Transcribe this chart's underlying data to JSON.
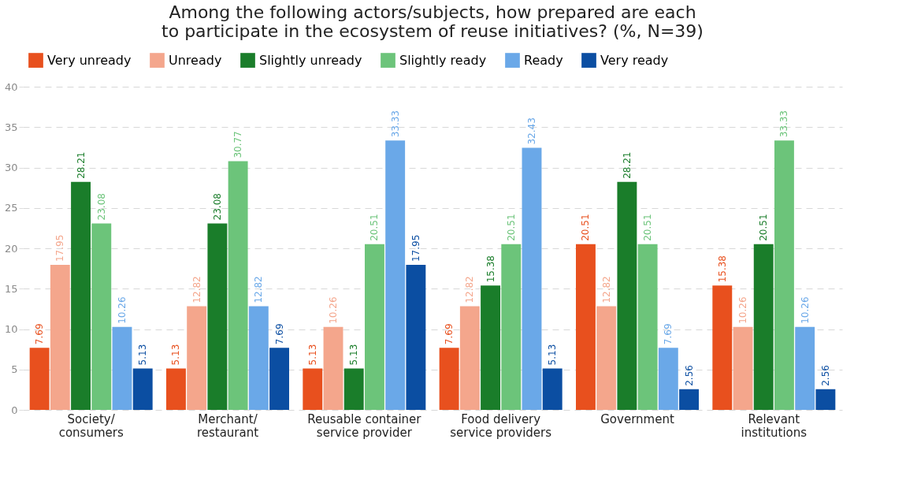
{
  "chart_data": {
    "type": "bar",
    "title": "Among the following actors/subjects, how prepared are each\nto participate in the ecosystem of reuse initiatives? (%, N=39)",
    "categories": [
      "Society/\nconsumers",
      "Merchant/\nrestaurant",
      "Reusable container\nservice provider",
      "Food delivery\nservice providers",
      "Government",
      "Relevant\ninstitutions"
    ],
    "series": [
      {
        "name": "Very unready",
        "color": "#e8501e",
        "values": [
          7.69,
          5.13,
          5.13,
          7.69,
          20.51,
          15.38
        ]
      },
      {
        "name": "Unready",
        "color": "#f4a68c",
        "values": [
          17.95,
          12.82,
          10.26,
          12.82,
          12.82,
          10.26
        ]
      },
      {
        "name": "Slightly unready",
        "color": "#1a7d2a",
        "values": [
          28.21,
          23.08,
          5.13,
          15.38,
          28.21,
          20.51
        ]
      },
      {
        "name": "Slightly ready",
        "color": "#6cc47a",
        "values": [
          23.08,
          30.77,
          20.51,
          20.51,
          20.51,
          33.33
        ]
      },
      {
        "name": "Ready",
        "color": "#6aa8e8",
        "values": [
          10.26,
          12.82,
          33.33,
          32.43,
          7.69,
          10.26
        ]
      },
      {
        "name": "Very ready",
        "color": "#0b4ea2",
        "values": [
          5.13,
          7.69,
          17.95,
          5.13,
          2.56,
          2.56
        ]
      }
    ],
    "ylim": [
      0,
      40
    ],
    "yticks": [
      0,
      5,
      10,
      15,
      20,
      25,
      30,
      35,
      40
    ],
    "grid": "y",
    "legend": "top",
    "data_labels": true
  }
}
